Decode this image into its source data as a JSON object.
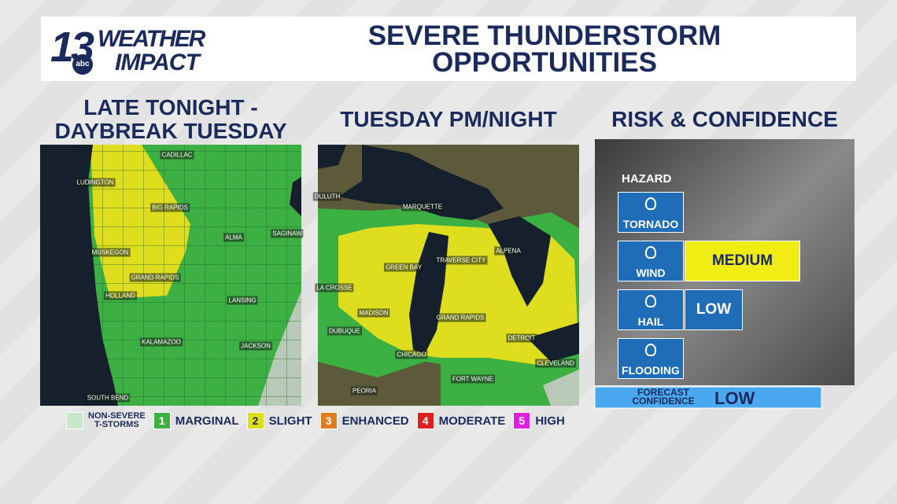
{
  "header": {
    "logo_number": "13",
    "logo_network": "abc",
    "logo_line1": "WEATHER",
    "logo_line2": "IMPACT",
    "title_lines": [
      "SEVERE THUNDERSTORM",
      "OPPORTUNITIES"
    ]
  },
  "panels": [
    {
      "title_lines": [
        "LATE TONIGHT -",
        "DAYBREAK TUESDAY"
      ],
      "cities": [
        "CADILLAC",
        "LUDINGTON",
        "BIG RAPIDS",
        "ALMA",
        "SAGINAW",
        "MUSKEGON",
        "GRAND RAPIDS",
        "HOLLAND",
        "LANSING",
        "KALAMAZOO",
        "JACKSON",
        "SOUTH BEND"
      ]
    },
    {
      "title_lines": [
        "TUESDAY PM/NIGHT"
      ],
      "cities": [
        "DULUTH",
        "MARQUETTE",
        "ALPENA",
        "GREEN BAY",
        "TRAVERSE CITY",
        "LA CROSSE",
        "MADISON",
        "GRAND RAPIDS",
        "DUBUQUE",
        "DETROIT",
        "CHICAGO",
        "CLEVELAND",
        "FORT WAYNE",
        "PEORIA"
      ]
    }
  ],
  "risk": {
    "title": "RISK & CONFIDENCE",
    "hazard_label": "HAZARD",
    "hazards": [
      {
        "name": "TORNADO"
      },
      {
        "name": "WIND",
        "level": "MEDIUM"
      },
      {
        "name": "HAIL",
        "level": "LOW"
      },
      {
        "name": "FLOODING"
      }
    ],
    "confidence_label_lines": [
      "FORECAST",
      "CONFIDENCE"
    ],
    "confidence": "LOW"
  },
  "legend": {
    "items": [
      {
        "label_lines": [
          "NON-SEVERE",
          "T-STORMS"
        ]
      },
      {
        "number": "1",
        "label": "MARGINAL"
      },
      {
        "number": "2",
        "label": "SLIGHT"
      },
      {
        "number": "3",
        "label": "ENHANCED"
      },
      {
        "number": "4",
        "label": "MODERATE"
      },
      {
        "number": "5",
        "label": "HIGH"
      }
    ]
  }
}
